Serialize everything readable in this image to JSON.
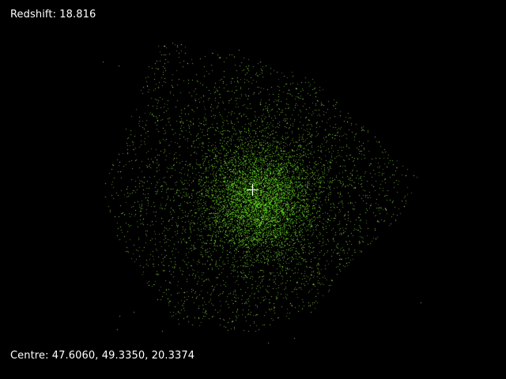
{
  "window": {
    "background": "#000000"
  },
  "hud": {
    "redshift": {
      "label": "Redshift:",
      "value": "18.816"
    },
    "centre": {
      "label": "Centre:",
      "x": "47.6060",
      "y": "49.3350",
      "z": "20.3374"
    }
  },
  "particles": {
    "color": "#7fd23a",
    "core_color": "#5fd21a",
    "sparse_color": "#d6ffb0"
  },
  "crosshair": {
    "icon": "crosshair-icon",
    "color": "#ffffff"
  }
}
